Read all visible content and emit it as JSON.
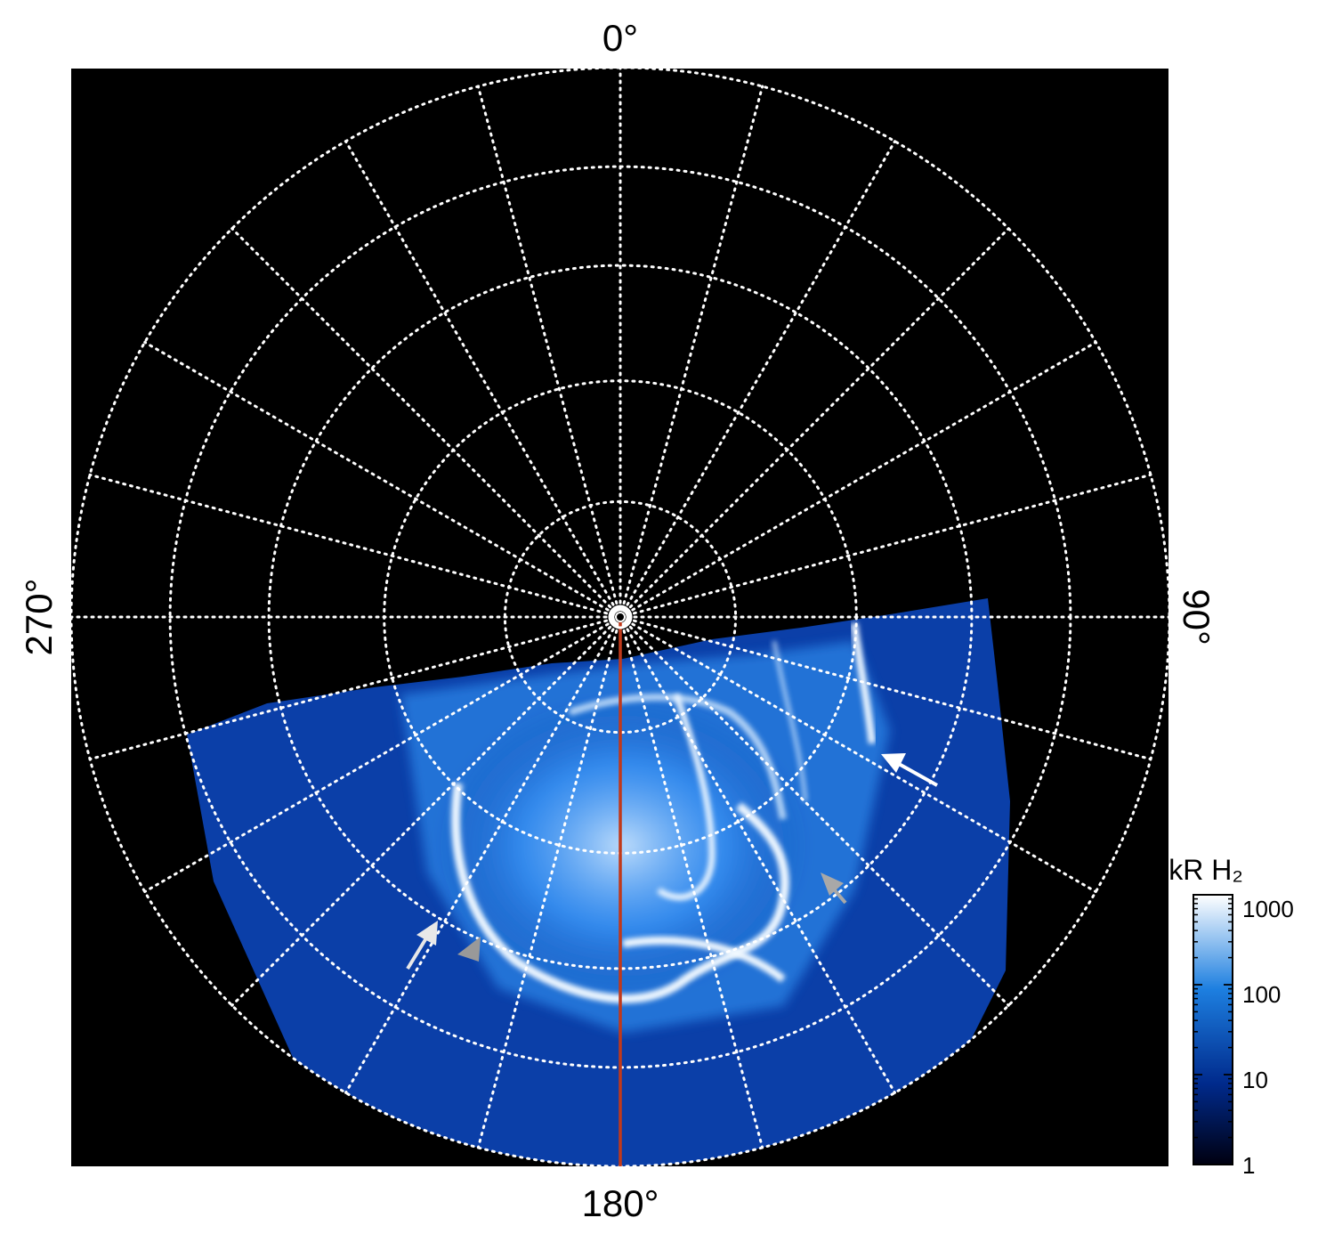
{
  "figure": {
    "background_color": "#000000",
    "grid_color": "#ffffff",
    "grid_style": "dotted",
    "meridian_color": "#c0391b",
    "longitude_labels": {
      "top": "0°",
      "right": "90°",
      "bottom": "180°",
      "left": "270°"
    },
    "colorbar": {
      "title": "kR H₂",
      "scale": "log",
      "range": [
        1,
        1000
      ],
      "ticks": [
        "1",
        "10",
        "100",
        "1000"
      ],
      "colors": [
        "#000010",
        "#002a8c",
        "#1d7fe0",
        "#ffffff"
      ]
    },
    "arrows": [
      {
        "color": "white",
        "role": "marker"
      },
      {
        "color": "gray",
        "role": "marker"
      },
      {
        "color": "white",
        "role": "marker"
      },
      {
        "color": "gray",
        "role": "marker"
      }
    ]
  }
}
